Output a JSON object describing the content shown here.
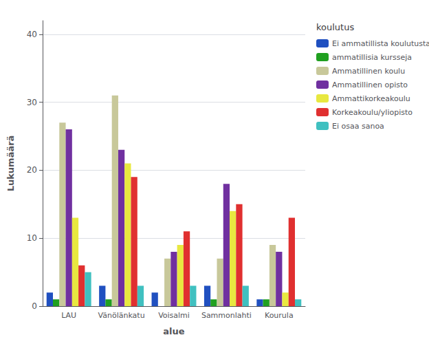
{
  "chart_data": {
    "type": "bar",
    "categories": [
      "LAU",
      "Vänölänkatu",
      "Voisalmi",
      "Sammonlahti",
      "Kourula"
    ],
    "series": [
      {
        "name": "Ei ammatillista koulutusta",
        "color": "#2050c0",
        "values": [
          2,
          3,
          2,
          3,
          1
        ]
      },
      {
        "name": "ammatillisia kursseja",
        "color": "#20a020",
        "values": [
          1,
          1,
          0,
          1,
          1
        ]
      },
      {
        "name": "Ammatillinen koulu",
        "color": "#c8c89a",
        "values": [
          27,
          31,
          7,
          7,
          9
        ]
      },
      {
        "name": "Ammatillinen opisto",
        "color": "#7030a0",
        "values": [
          26,
          23,
          8,
          18,
          8
        ]
      },
      {
        "name": "Ammattikorkeakoulu",
        "color": "#e8e840",
        "values": [
          13,
          21,
          9,
          14,
          2
        ]
      },
      {
        "name": "Korkeakoulu/yliopisto",
        "color": "#e03030",
        "values": [
          6,
          19,
          11,
          15,
          13
        ]
      },
      {
        "name": "Ei osaa sanoa",
        "color": "#40c0c0",
        "values": [
          5,
          3,
          3,
          3,
          1
        ]
      }
    ],
    "xlabel": "alue",
    "ylabel": "Lukumäärä",
    "legend_title": "koulutus",
    "legend": "right",
    "ylim": [
      0,
      42
    ],
    "yticks": [
      0,
      10,
      20,
      30,
      40
    ],
    "grid": true
  }
}
